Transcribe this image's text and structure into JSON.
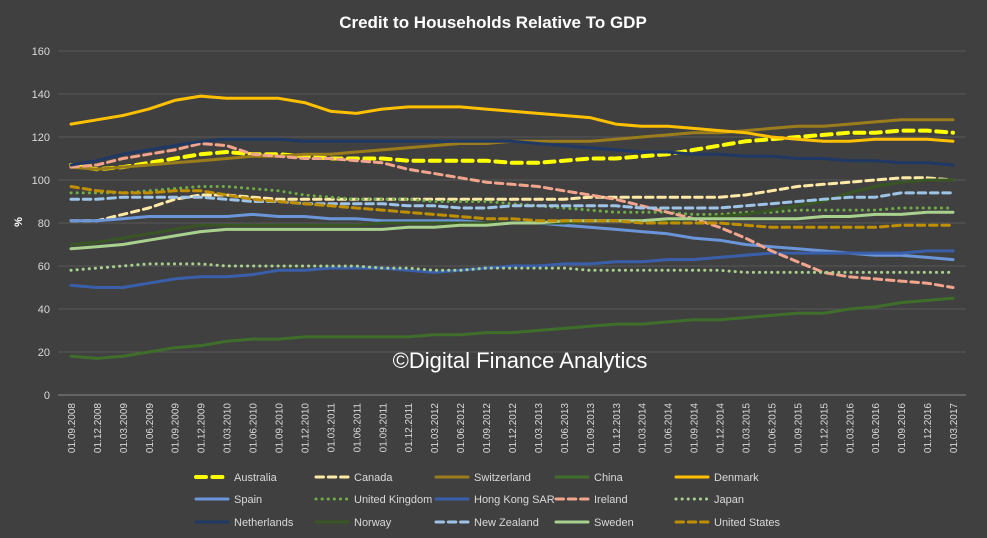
{
  "watermark": "©Digital Finance Analytics",
  "chart_data": {
    "type": "line",
    "title": "Credit to Households Relative To GDP",
    "ylabel": "%",
    "xlabel": "",
    "ylim": [
      0,
      160
    ],
    "yticks": [
      0,
      20,
      40,
      60,
      80,
      100,
      120,
      140,
      160
    ],
    "grid": true,
    "legend_position": "bottom",
    "x": [
      "01.09.2008",
      "01.12.2008",
      "01.03.2009",
      "01.06.2009",
      "01.09.2009",
      "01.12.2009",
      "01.03.2010",
      "01.06.2010",
      "01.09.2010",
      "01.12.2010",
      "01.03.2011",
      "01.06.2011",
      "01.09.2011",
      "01.12.2011",
      "01.03.2012",
      "01.06.2012",
      "01.09.2012",
      "01.12.2012",
      "01.03.2013",
      "01.06.2013",
      "01.09.2013",
      "01.12.2013",
      "01.03.2014",
      "01.06.2014",
      "01.09.2014",
      "01.12.2014",
      "01.03.2015",
      "01.06.2015",
      "01.09.2015",
      "01.12.2015",
      "01.03.2016",
      "01.06.2016",
      "01.09.2016",
      "01.12.2016",
      "01.03.2017"
    ],
    "series": [
      {
        "name": "Australia",
        "color": "#ffff00",
        "dash": "dash",
        "width": 4,
        "values": [
          107,
          105,
          106,
          108,
          110,
          112,
          113,
          112,
          112,
          111,
          110,
          110,
          110,
          109,
          109,
          109,
          109,
          108,
          108,
          109,
          110,
          110,
          111,
          112,
          114,
          116,
          118,
          119,
          120,
          121,
          122,
          122,
          123,
          123,
          122
        ]
      },
      {
        "name": "Canada",
        "color": "#ffe9a6",
        "dash": "dash",
        "width": 3,
        "values": [
          81,
          81,
          84,
          87,
          91,
          93,
          93,
          92,
          91,
          91,
          91,
          91,
          91,
          91,
          91,
          91,
          91,
          91,
          91,
          91,
          92,
          92,
          92,
          92,
          92,
          92,
          93,
          95,
          97,
          98,
          99,
          100,
          101,
          101,
          100
        ]
      },
      {
        "name": "Switzerland",
        "color": "#9c7d1b",
        "dash": "solid",
        "width": 3,
        "values": [
          106,
          105,
          106,
          107,
          108,
          109,
          110,
          111,
          111,
          112,
          112,
          113,
          114,
          115,
          116,
          117,
          117,
          118,
          118,
          118,
          118,
          119,
          120,
          121,
          122,
          122,
          123,
          124,
          125,
          125,
          126,
          127,
          128,
          128,
          128
        ]
      },
      {
        "name": "China",
        "color": "#3f6e2a",
        "dash": "solid",
        "width": 3,
        "values": [
          18,
          17,
          18,
          20,
          22,
          23,
          25,
          26,
          26,
          27,
          27,
          27,
          27,
          27,
          28,
          28,
          29,
          29,
          30,
          31,
          32,
          33,
          33,
          34,
          35,
          35,
          36,
          37,
          38,
          38,
          40,
          41,
          43,
          44,
          45
        ]
      },
      {
        "name": "Denmark",
        "color": "#ffc000",
        "dash": "solid",
        "width": 3,
        "values": [
          126,
          128,
          130,
          133,
          137,
          139,
          138,
          138,
          138,
          136,
          132,
          131,
          133,
          134,
          134,
          134,
          133,
          132,
          131,
          130,
          129,
          126,
          125,
          125,
          124,
          123,
          122,
          120,
          119,
          118,
          118,
          119,
          119,
          119,
          118
        ]
      },
      {
        "name": "Spain",
        "color": "#6a95d8",
        "dash": "solid",
        "width": 3,
        "values": [
          81,
          81,
          82,
          83,
          83,
          83,
          83,
          84,
          83,
          83,
          82,
          82,
          81,
          81,
          81,
          81,
          80,
          80,
          80,
          79,
          78,
          77,
          76,
          75,
          73,
          72,
          70,
          69,
          68,
          67,
          66,
          65,
          65,
          64,
          63
        ]
      },
      {
        "name": "United Kingdom",
        "color": "#70ad47",
        "dash": "dot",
        "width": 3,
        "values": [
          94,
          94,
          94,
          95,
          96,
          97,
          97,
          96,
          95,
          93,
          92,
          91,
          91,
          91,
          90,
          90,
          90,
          89,
          88,
          87,
          86,
          85,
          85,
          85,
          84,
          84,
          85,
          85,
          86,
          86,
          86,
          86,
          87,
          87,
          87
        ]
      },
      {
        "name": "Hong Kong SAR",
        "color": "#3a5faa",
        "dash": "solid",
        "width": 3,
        "values": [
          51,
          50,
          50,
          52,
          54,
          55,
          55,
          56,
          58,
          58,
          59,
          59,
          59,
          58,
          57,
          58,
          59,
          60,
          60,
          61,
          61,
          62,
          62,
          63,
          63,
          64,
          65,
          66,
          66,
          66,
          66,
          66,
          66,
          67,
          67
        ]
      },
      {
        "name": "Ireland",
        "color": "#f2a58c",
        "dash": "dash",
        "width": 3,
        "values": [
          106,
          107,
          110,
          112,
          114,
          117,
          116,
          112,
          111,
          110,
          110,
          109,
          108,
          105,
          103,
          101,
          99,
          98,
          97,
          95,
          93,
          91,
          88,
          85,
          82,
          78,
          73,
          67,
          62,
          57,
          55,
          54,
          53,
          52,
          50
        ]
      },
      {
        "name": "Japan",
        "color": "#a9d18e",
        "dash": "dot",
        "width": 3,
        "values": [
          58,
          59,
          60,
          61,
          61,
          61,
          60,
          60,
          60,
          60,
          60,
          60,
          59,
          59,
          58,
          58,
          59,
          59,
          59,
          59,
          58,
          58,
          58,
          58,
          58,
          58,
          57,
          57,
          57,
          57,
          57,
          57,
          57,
          57,
          57
        ]
      },
      {
        "name": "Netherlands",
        "color": "#1f3864",
        "dash": "solid",
        "width": 3,
        "values": [
          107,
          109,
          112,
          114,
          116,
          118,
          119,
          119,
          119,
          118,
          118,
          118,
          118,
          118,
          118,
          118,
          118,
          118,
          117,
          116,
          115,
          114,
          113,
          113,
          112,
          112,
          111,
          111,
          110,
          110,
          109,
          109,
          108,
          108,
          107
        ]
      },
      {
        "name": "Norway",
        "color": "#375623",
        "dash": "solid",
        "width": 3,
        "values": [
          70,
          71,
          73,
          75,
          77,
          79,
          79,
          79,
          79,
          79,
          79,
          79,
          80,
          80,
          80,
          80,
          80,
          80,
          80,
          80,
          81,
          81,
          81,
          81,
          82,
          83,
          84,
          86,
          88,
          90,
          94,
          97,
          99,
          100,
          100
        ]
      },
      {
        "name": "New Zealand",
        "color": "#9dc3e6",
        "dash": "dash",
        "width": 3,
        "values": [
          91,
          91,
          92,
          92,
          92,
          92,
          91,
          90,
          90,
          89,
          89,
          89,
          89,
          88,
          88,
          87,
          87,
          88,
          88,
          88,
          88,
          88,
          87,
          87,
          87,
          87,
          88,
          89,
          90,
          91,
          92,
          92,
          94,
          94,
          94
        ]
      },
      {
        "name": "Sweden",
        "color": "#a9d18e",
        "dash": "solid",
        "width": 3,
        "values": [
          68,
          69,
          70,
          72,
          74,
          76,
          77,
          77,
          77,
          77,
          77,
          77,
          77,
          78,
          78,
          79,
          79,
          80,
          80,
          81,
          81,
          81,
          81,
          82,
          82,
          82,
          82,
          82,
          82,
          83,
          83,
          84,
          84,
          85,
          85
        ]
      },
      {
        "name": "United States",
        "color": "#bf8f00",
        "dash": "dash",
        "width": 3,
        "values": [
          97,
          95,
          94,
          94,
          95,
          95,
          93,
          91,
          90,
          89,
          88,
          87,
          86,
          85,
          84,
          83,
          82,
          82,
          81,
          81,
          81,
          81,
          80,
          80,
          80,
          80,
          79,
          78,
          78,
          78,
          78,
          78,
          79,
          79,
          79
        ]
      }
    ]
  }
}
